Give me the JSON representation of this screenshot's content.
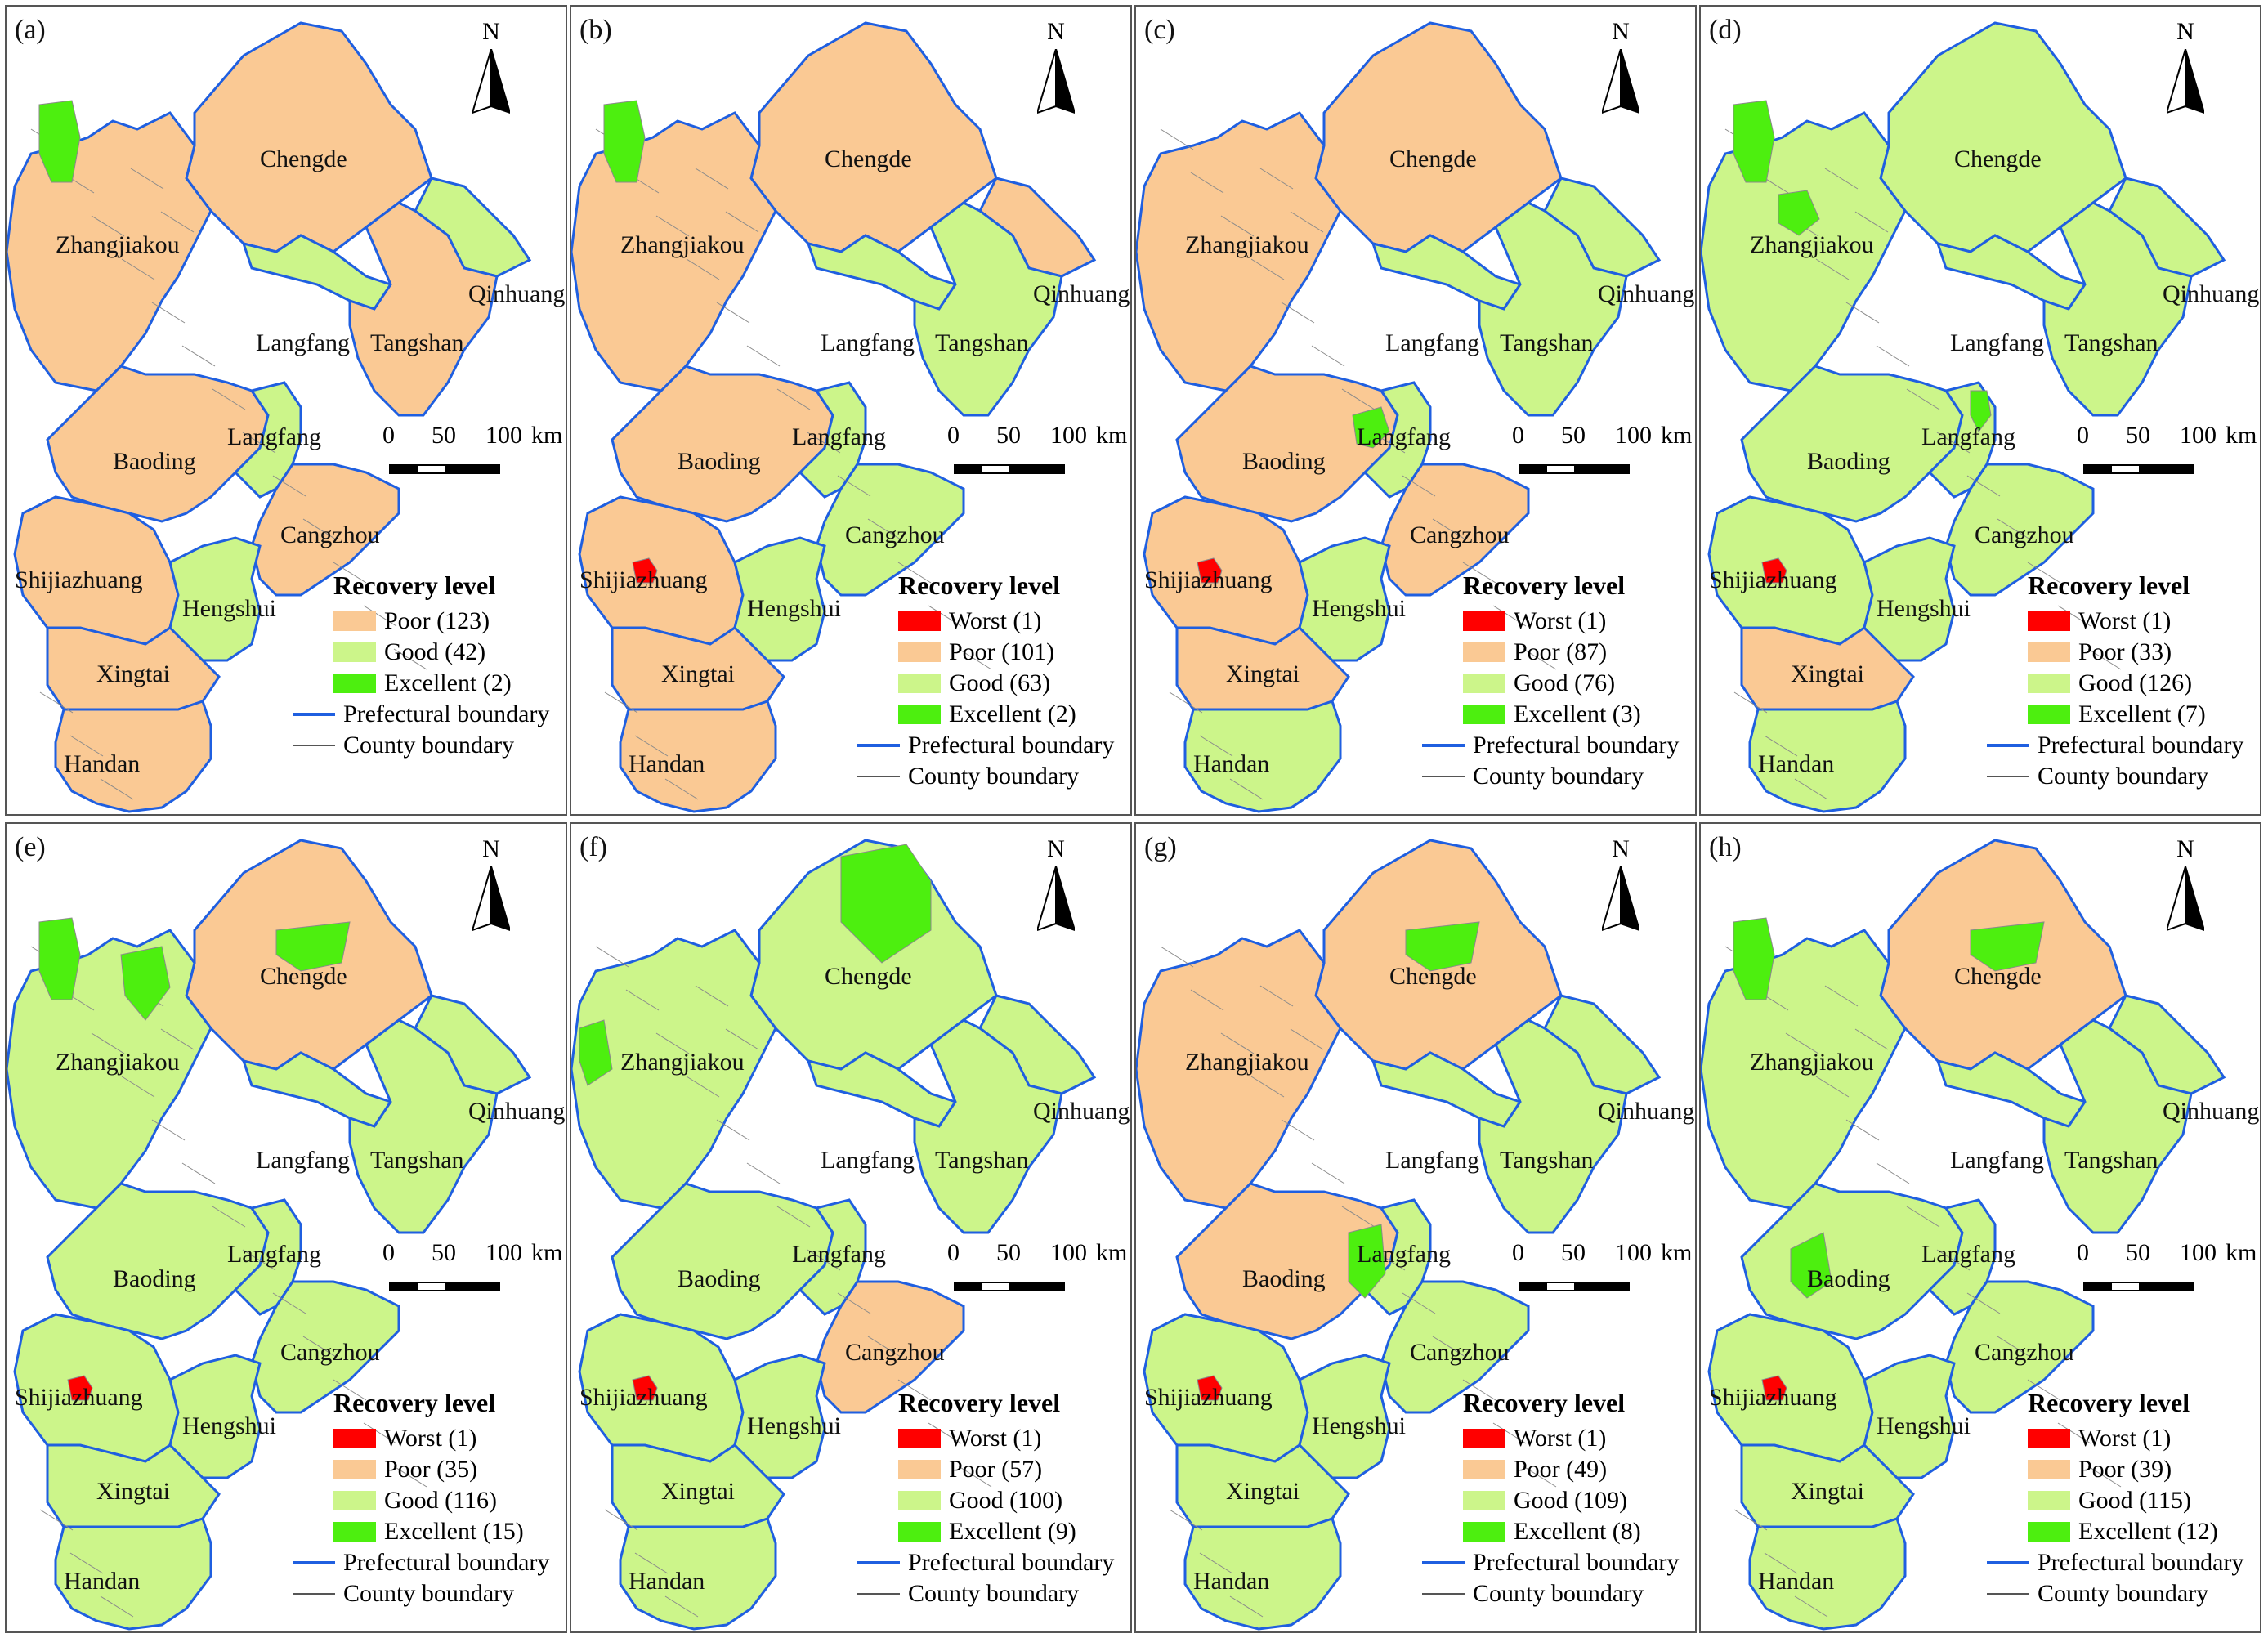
{
  "colors": {
    "worst": "#ff0000",
    "poor": "#fac994",
    "good": "#ccf58a",
    "excellent": "#4def0f",
    "prefectural_boundary": "#1f5fe0",
    "county_boundary": "#8a8a8a"
  },
  "legend_common": {
    "title": "Recovery level",
    "prefectural": "Prefectural boundary",
    "county": "County boundary"
  },
  "scale_bar": {
    "label0": "0",
    "label50": "50",
    "label100": "100",
    "unit": "km"
  },
  "north_label": "N",
  "cities": [
    {
      "key": "chengde",
      "name": "Chengde"
    },
    {
      "key": "zhangjiakou",
      "name": "Zhangjiakou"
    },
    {
      "key": "qinhuangdao",
      "name": "Qinhuangdao"
    },
    {
      "key": "langfang_n",
      "name": "Langfang"
    },
    {
      "key": "tangshan",
      "name": "Tangshan"
    },
    {
      "key": "langfang_s",
      "name": "Langfang"
    },
    {
      "key": "baoding",
      "name": "Baoding"
    },
    {
      "key": "cangzhou",
      "name": "Cangzhou"
    },
    {
      "key": "shijiazhuang",
      "name": "Shijiazhuang"
    },
    {
      "key": "hengshui",
      "name": "Hengshui"
    },
    {
      "key": "xingtai",
      "name": "Xingtai"
    },
    {
      "key": "handan",
      "name": "Handan"
    }
  ],
  "panels": [
    {
      "label": "(a)",
      "legend": [
        {
          "cls": "poor",
          "text": "Poor (123)"
        },
        {
          "cls": "good",
          "text": "Good (42)"
        },
        {
          "cls": "excellent",
          "text": "Excellent (2)"
        }
      ],
      "fills": {
        "chengde": "poor",
        "zhangjiakou": "poor",
        "qinhuangdao": "good",
        "tangshan": "poor",
        "baoding": "poor",
        "langfang": "good",
        "cangzhou": "poor",
        "shijiazhuang": "poor",
        "hengshui": "good",
        "xingtai": "poor",
        "handan": "poor",
        "langfang_north": "good"
      }
    },
    {
      "label": "(b)",
      "legend": [
        {
          "cls": "worst",
          "text": "Worst (1)"
        },
        {
          "cls": "poor",
          "text": "Poor (101)"
        },
        {
          "cls": "good",
          "text": "Good (63)"
        },
        {
          "cls": "excellent",
          "text": "Excellent (2)"
        }
      ],
      "fills": {
        "chengde": "poor",
        "zhangjiakou": "poor",
        "qinhuangdao": "poor",
        "tangshan": "good",
        "baoding": "poor",
        "langfang": "good",
        "cangzhou": "good",
        "shijiazhuang": "poor",
        "hengshui": "good",
        "xingtai": "poor",
        "handan": "poor",
        "langfang_north": "good"
      }
    },
    {
      "label": "(c)",
      "legend": [
        {
          "cls": "worst",
          "text": "Worst (1)"
        },
        {
          "cls": "poor",
          "text": "Poor (87)"
        },
        {
          "cls": "good",
          "text": "Good (76)"
        },
        {
          "cls": "excellent",
          "text": "Excellent (3)"
        }
      ],
      "fills": {
        "chengde": "poor",
        "zhangjiakou": "poor",
        "qinhuangdao": "good",
        "tangshan": "good",
        "baoding": "poor",
        "langfang": "good",
        "cangzhou": "poor",
        "shijiazhuang": "poor",
        "hengshui": "good",
        "xingtai": "poor",
        "handan": "good",
        "langfang_north": "good"
      }
    },
    {
      "label": "(d)",
      "legend": [
        {
          "cls": "worst",
          "text": "Worst (1)"
        },
        {
          "cls": "poor",
          "text": "Poor (33)"
        },
        {
          "cls": "good",
          "text": "Good (126)"
        },
        {
          "cls": "excellent",
          "text": "Excellent (7)"
        }
      ],
      "fills": {
        "chengde": "good",
        "zhangjiakou": "good",
        "qinhuangdao": "good",
        "tangshan": "good",
        "baoding": "good",
        "langfang": "good",
        "cangzhou": "good",
        "shijiazhuang": "good",
        "hengshui": "good",
        "xingtai": "poor",
        "handan": "good",
        "langfang_north": "good"
      }
    },
    {
      "label": "(e)",
      "legend": [
        {
          "cls": "worst",
          "text": "Worst (1)"
        },
        {
          "cls": "poor",
          "text": "Poor (35)"
        },
        {
          "cls": "good",
          "text": "Good (116)"
        },
        {
          "cls": "excellent",
          "text": "Excellent (15)"
        }
      ],
      "fills": {
        "chengde": "poor",
        "zhangjiakou": "good",
        "qinhuangdao": "good",
        "tangshan": "good",
        "baoding": "good",
        "langfang": "good",
        "cangzhou": "good",
        "shijiazhuang": "good",
        "hengshui": "good",
        "xingtai": "good",
        "handan": "good",
        "langfang_north": "good"
      }
    },
    {
      "label": "(f)",
      "legend": [
        {
          "cls": "worst",
          "text": "Worst (1)"
        },
        {
          "cls": "poor",
          "text": "Poor (57)"
        },
        {
          "cls": "good",
          "text": "Good (100)"
        },
        {
          "cls": "excellent",
          "text": "Excellent (9)"
        }
      ],
      "fills": {
        "chengde": "good",
        "zhangjiakou": "good",
        "qinhuangdao": "good",
        "tangshan": "good",
        "baoding": "good",
        "langfang": "good",
        "cangzhou": "poor",
        "shijiazhuang": "good",
        "hengshui": "good",
        "xingtai": "good",
        "handan": "good",
        "langfang_north": "good"
      }
    },
    {
      "label": "(g)",
      "legend": [
        {
          "cls": "worst",
          "text": "Worst (1)"
        },
        {
          "cls": "poor",
          "text": "Poor (49)"
        },
        {
          "cls": "good",
          "text": "Good (109)"
        },
        {
          "cls": "excellent",
          "text": "Excellent (8)"
        }
      ],
      "fills": {
        "chengde": "poor",
        "zhangjiakou": "poor",
        "qinhuangdao": "good",
        "tangshan": "good",
        "baoding": "poor",
        "langfang": "good",
        "cangzhou": "good",
        "shijiazhuang": "good",
        "hengshui": "good",
        "xingtai": "good",
        "handan": "good",
        "langfang_north": "good"
      }
    },
    {
      "label": "(h)",
      "legend": [
        {
          "cls": "worst",
          "text": "Worst (1)"
        },
        {
          "cls": "poor",
          "text": "Poor (39)"
        },
        {
          "cls": "good",
          "text": "Good (115)"
        },
        {
          "cls": "excellent",
          "text": "Excellent (12)"
        }
      ],
      "fills": {
        "chengde": "poor",
        "zhangjiakou": "good",
        "qinhuangdao": "good",
        "tangshan": "good",
        "baoding": "good",
        "langfang": "good",
        "cangzhou": "good",
        "shijiazhuang": "good",
        "hengshui": "good",
        "xingtai": "good",
        "handan": "good",
        "langfang_north": "good"
      }
    }
  ]
}
